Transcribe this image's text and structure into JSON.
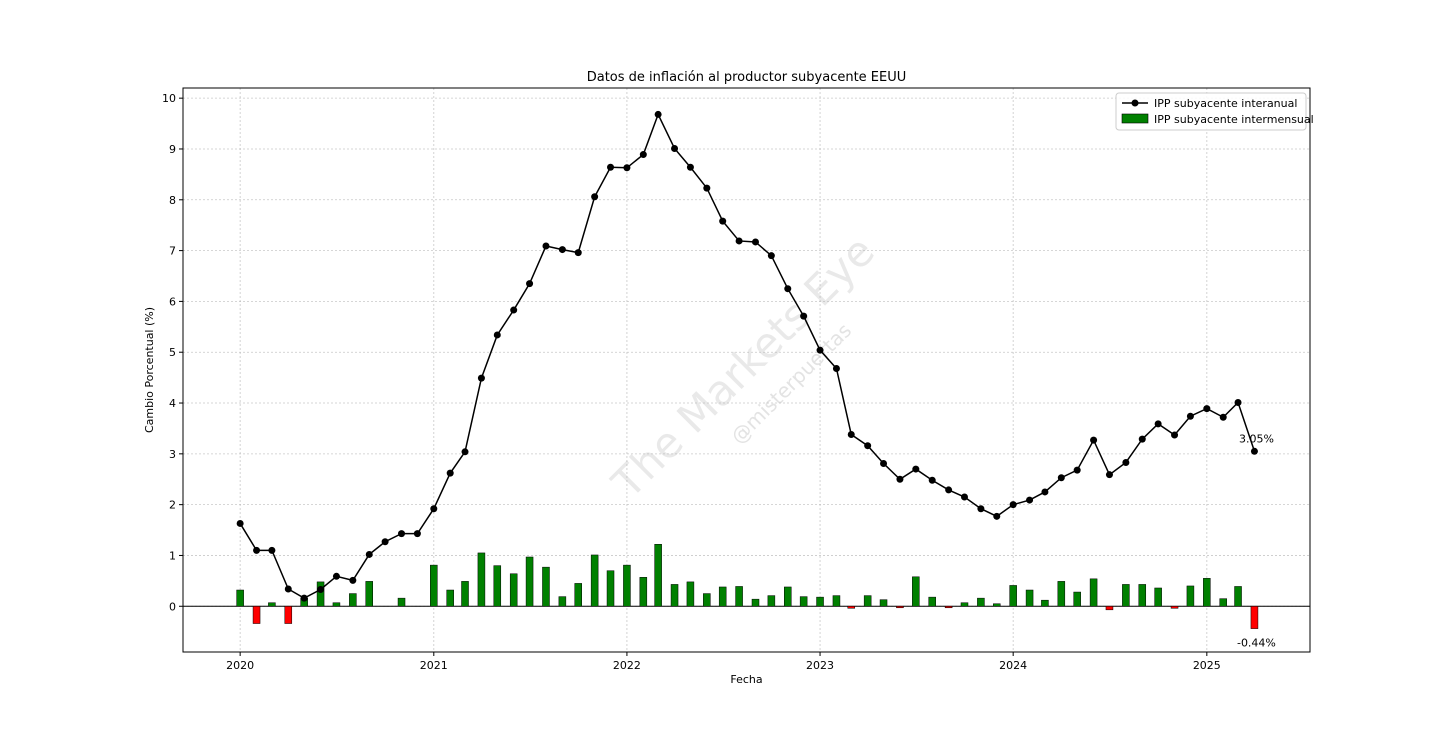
{
  "chart_data": {
    "type": "bar+line",
    "title": "Datos de inflación al productor subyacente EEUU",
    "xlabel": "Fecha",
    "ylabel": "Cambio Porcentual (%)",
    "ylim": [
      -0.9,
      10.2
    ],
    "yticks": [
      0,
      1,
      2,
      3,
      4,
      5,
      6,
      7,
      8,
      9,
      10
    ],
    "xlim": [
      "2019-09-15",
      "2025-07-15"
    ],
    "xticks": [
      "2020",
      "2021",
      "2022",
      "2023",
      "2024",
      "2025"
    ],
    "grid": true,
    "legend_position": "top-right",
    "dates": [
      "2020-01",
      "2020-02",
      "2020-03",
      "2020-04",
      "2020-05",
      "2020-06",
      "2020-07",
      "2020-08",
      "2020-09",
      "2020-10",
      "2020-11",
      "2020-12",
      "2021-01",
      "2021-02",
      "2021-03",
      "2021-04",
      "2021-05",
      "2021-06",
      "2021-07",
      "2021-08",
      "2021-09",
      "2021-10",
      "2021-11",
      "2021-12",
      "2022-01",
      "2022-02",
      "2022-03",
      "2022-04",
      "2022-05",
      "2022-06",
      "2022-07",
      "2022-08",
      "2022-09",
      "2022-10",
      "2022-11",
      "2022-12",
      "2023-01",
      "2023-02",
      "2023-03",
      "2023-04",
      "2023-05",
      "2023-06",
      "2023-07",
      "2023-08",
      "2023-09",
      "2023-10",
      "2023-11",
      "2023-12",
      "2024-01",
      "2024-02",
      "2024-03",
      "2024-04",
      "2024-05",
      "2024-06",
      "2024-07",
      "2024-08",
      "2024-09",
      "2024-10",
      "2024-11",
      "2024-12",
      "2025-01",
      "2025-02",
      "2025-03",
      "2025-04"
    ],
    "series": [
      {
        "name": "IPP subyacente interanual",
        "kind": "line",
        "color": "#000000",
        "values": [
          1.63,
          1.1,
          1.1,
          0.34,
          0.16,
          0.33,
          0.59,
          0.51,
          1.02,
          1.27,
          1.43,
          1.43,
          1.92,
          2.62,
          3.04,
          4.49,
          5.34,
          5.83,
          6.35,
          7.09,
          7.02,
          6.96,
          8.06,
          8.64,
          8.63,
          8.89,
          9.68,
          9.01,
          8.64,
          8.23,
          7.58,
          7.19,
          7.17,
          6.9,
          6.25,
          5.71,
          5.04,
          4.68,
          3.38,
          3.16,
          2.81,
          2.5,
          2.7,
          2.48,
          2.29,
          2.15,
          1.92,
          1.77,
          2.0,
          2.09,
          2.25,
          2.53,
          2.68,
          3.27,
          2.59,
          2.83,
          3.29,
          3.59,
          3.37,
          3.74,
          3.89,
          3.72,
          4.01,
          3.05
        ]
      },
      {
        "name": "IPP subyacente intermensual",
        "kind": "bar",
        "color_positive": "#008000",
        "color_negative": "#ff0000",
        "values": [
          0.32,
          -0.34,
          0.07,
          -0.34,
          0.16,
          0.48,
          0.07,
          0.25,
          0.49,
          0.0,
          0.16,
          0.0,
          0.81,
          0.32,
          0.49,
          1.05,
          0.8,
          0.64,
          0.97,
          0.77,
          0.19,
          0.45,
          1.01,
          0.7,
          0.81,
          0.57,
          1.22,
          0.43,
          0.48,
          0.25,
          0.38,
          0.39,
          0.14,
          0.21,
          0.38,
          0.19,
          0.18,
          0.21,
          -0.04,
          0.21,
          0.13,
          -0.03,
          0.58,
          0.18,
          -0.03,
          0.07,
          0.16,
          0.05,
          0.41,
          0.32,
          0.12,
          0.49,
          0.28,
          0.54,
          -0.07,
          0.43,
          0.43,
          0.36,
          -0.04,
          0.4,
          0.55,
          0.15,
          0.39,
          -0.44
        ]
      }
    ],
    "annotations": [
      {
        "text": "3.05%",
        "date": "2025-04",
        "value": 3.05
      },
      {
        "text": "-0.44%",
        "date": "2025-04",
        "value": -0.44
      }
    ]
  },
  "watermark": {
    "main": "The Markets Eye",
    "sub": "@misterpuertas"
  }
}
